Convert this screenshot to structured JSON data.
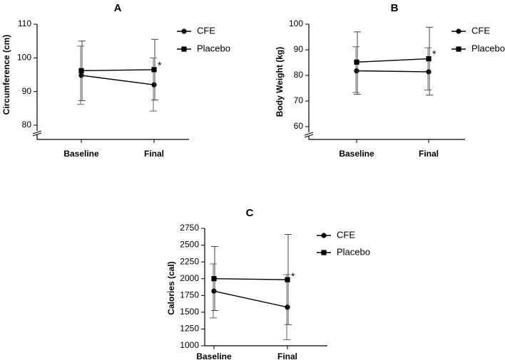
{
  "chart_data": [
    {
      "type": "line",
      "panel": "A",
      "categories": [
        "Baseline",
        "Final"
      ],
      "ylabel": "Circumference (cm)",
      "ylim": [
        80,
        110
      ],
      "yticks": [
        80,
        90,
        100,
        110
      ],
      "axis_break": true,
      "series": [
        {
          "name": "CFE",
          "marker": "circle",
          "values": [
            94.8,
            92.0
          ],
          "err_upper": [
            103.5,
            100.0
          ],
          "err_lower": [
            86.2,
            84.2
          ]
        },
        {
          "name": "Placebo",
          "marker": "square",
          "values": [
            96.2,
            96.5
          ],
          "err_upper": [
            105.0,
            105.5
          ],
          "err_lower": [
            87.3,
            87.5
          ]
        }
      ],
      "annotations": [
        {
          "text": "*",
          "at": "Final"
        }
      ],
      "legend": "top-right"
    },
    {
      "type": "line",
      "panel": "B",
      "categories": [
        "Baseline",
        "Final"
      ],
      "ylabel": "Body Weight (kg)",
      "ylim": [
        60,
        100
      ],
      "yticks": [
        60,
        70,
        80,
        90,
        100
      ],
      "axis_break": true,
      "series": [
        {
          "name": "CFE",
          "marker": "circle",
          "values": [
            81.8,
            81.4
          ],
          "err_upper": [
            91.2,
            90.8
          ],
          "err_lower": [
            73.3,
            74.3
          ]
        },
        {
          "name": "Placebo",
          "marker": "square",
          "values": [
            85.2,
            86.5
          ],
          "err_upper": [
            97.0,
            98.8
          ],
          "err_lower": [
            72.6,
            72.3
          ]
        }
      ],
      "annotations": [
        {
          "text": "*",
          "at": "Final"
        }
      ],
      "legend": "top-right"
    },
    {
      "type": "line",
      "panel": "C",
      "categories": [
        "Baseline",
        "Final"
      ],
      "ylabel": "Calories (cal)",
      "ylim": [
        1000,
        2750
      ],
      "yticks": [
        1000,
        1250,
        1500,
        1750,
        2000,
        2250,
        2500,
        2750
      ],
      "axis_break": false,
      "series": [
        {
          "name": "CFE",
          "marker": "circle",
          "values": [
            1815,
            1575
          ],
          "err_upper": [
            2220,
            2060
          ],
          "err_lower": [
            1415,
            1090
          ]
        },
        {
          "name": "Placebo",
          "marker": "square",
          "values": [
            2000,
            1985
          ],
          "err_upper": [
            2480,
            2660
          ],
          "err_lower": [
            1525,
            1315
          ]
        }
      ],
      "annotations": [
        {
          "text": "*",
          "at": "Final"
        }
      ],
      "legend": "top-right"
    }
  ]
}
